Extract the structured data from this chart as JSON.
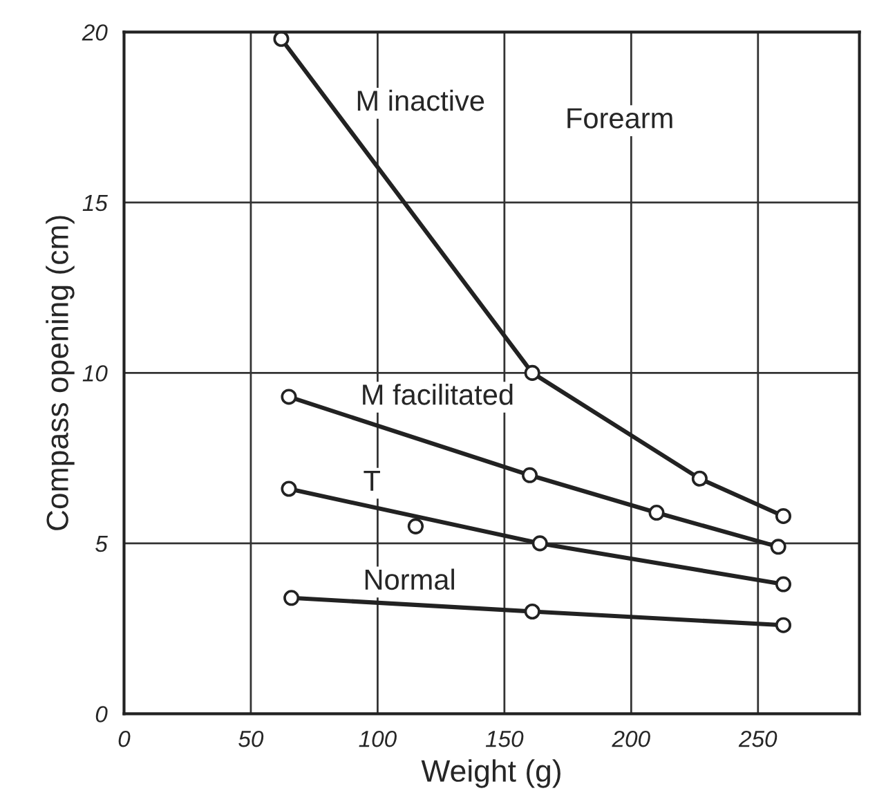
{
  "chart_data": {
    "type": "line",
    "xlabel": "Weight (g)",
    "ylabel": "Compass opening (cm)",
    "xlim": [
      0,
      290
    ],
    "ylim": [
      0,
      20
    ],
    "xticks": [
      0,
      50,
      100,
      150,
      200,
      250
    ],
    "yticks": [
      0,
      5,
      10,
      15,
      20
    ],
    "grid": true,
    "marker": "circle",
    "line_style": "solid",
    "series": [
      {
        "name": "M inactive",
        "color": "#222222",
        "x": [
          62,
          161,
          227,
          260
        ],
        "values": [
          19.8,
          10.0,
          6.9,
          5.8
        ]
      },
      {
        "name": "M facilitated",
        "color": "#222222",
        "x": [
          65,
          160,
          210,
          258
        ],
        "values": [
          9.3,
          7.0,
          5.9,
          4.9
        ]
      },
      {
        "name": "T",
        "color": "#222222",
        "x": [
          65,
          164,
          260
        ],
        "values": [
          6.6,
          5.0,
          3.8
        ]
      },
      {
        "color": "#222222",
        "type": "scatter",
        "x": [
          115
        ],
        "values": [
          5.5
        ]
      },
      {
        "name": "Normal",
        "color": "#222222",
        "x": [
          66,
          161,
          260
        ],
        "values": [
          3.4,
          3.0,
          2.6
        ]
      }
    ],
    "annotations": [
      "Forearm"
    ]
  }
}
